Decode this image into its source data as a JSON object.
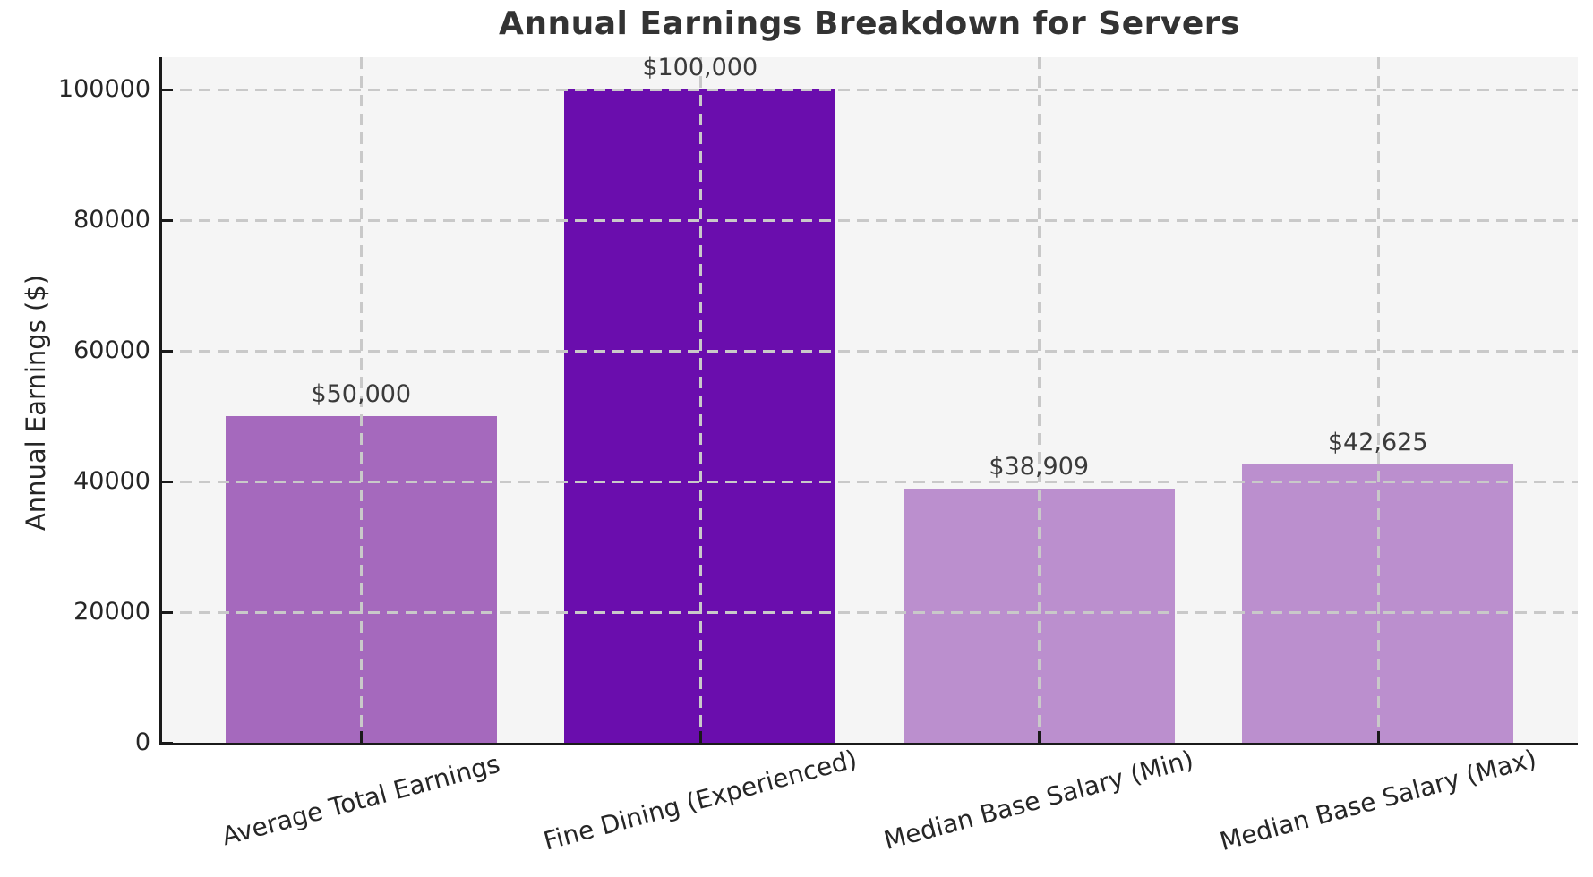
{
  "title": "Annual Earnings Breakdown for Servers",
  "chart_data": {
    "type": "bar",
    "title": "Annual Earnings Breakdown for Servers",
    "xlabel": "",
    "ylabel": "Annual Earnings ($)",
    "categories": [
      "Average Total Earnings",
      "Fine Dining (Experienced)",
      "Median Base Salary (Min)",
      "Median Base Salary (Max)"
    ],
    "values": [
      50000,
      100000,
      38909,
      42625
    ],
    "value_labels": [
      "$50,000",
      "$100,000",
      "$38,909",
      "$42,625"
    ],
    "bar_colors": [
      "#a569bd",
      "#6a0dad",
      "#bb8fce",
      "#bb8fce"
    ],
    "yticks": [
      0,
      20000,
      40000,
      60000,
      80000,
      100000
    ],
    "ytick_labels": [
      "0",
      "20000",
      "40000",
      "60000",
      "80000",
      "100000"
    ],
    "ylim": [
      0,
      105000
    ],
    "grid": true,
    "grid_style": "dashed",
    "grid_color": "#c9c9c9",
    "plot_background": "#f5f5f5",
    "figure_background": "#ffffff",
    "legend": "none",
    "xtick_rotation_deg": 15
  }
}
